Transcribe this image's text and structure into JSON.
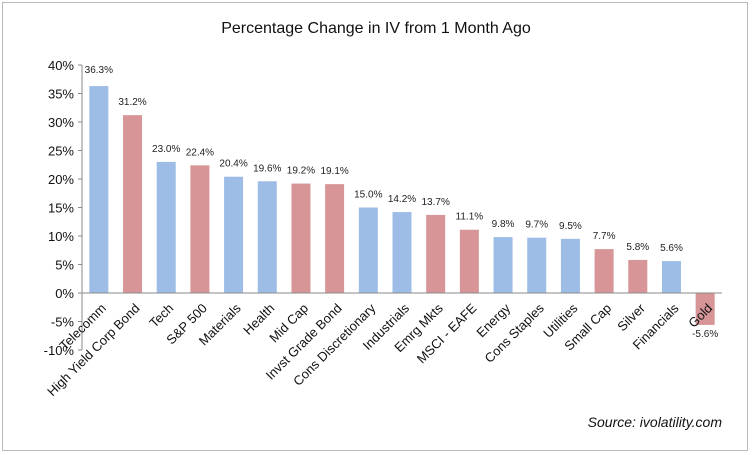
{
  "chart_data": {
    "type": "bar",
    "title": "Percentage Change in IV from 1 Month Ago",
    "source": "Source: ivolatility.com",
    "ylim": [
      -10,
      40
    ],
    "yticks": [
      "40%",
      "35%",
      "30%",
      "25%",
      "20%",
      "15%",
      "10%",
      "5%",
      "0%",
      "-5%",
      "-10%"
    ],
    "grid": false,
    "colors": {
      "blue": "#9dbde6",
      "red": "#d79597"
    },
    "categories": [
      "Telecomm",
      "High Yield Corp Bond",
      "Tech",
      "S&P 500",
      "Materials",
      "Health",
      "Mid Cap",
      "Invst Grade Bond",
      "Cons Discretionary",
      "Industrials",
      "Emrg Mkts",
      "MSCI - EAFE",
      "Energy",
      "Cons Staples",
      "Utilities",
      "Small Cap",
      "Silver",
      "Financials",
      "Gold"
    ],
    "values": [
      36.3,
      31.2,
      23.0,
      22.4,
      20.4,
      19.6,
      19.2,
      19.1,
      15.0,
      14.2,
      13.7,
      11.1,
      9.8,
      9.7,
      9.5,
      7.7,
      5.8,
      5.6,
      -5.6
    ],
    "value_labels": [
      "36.3%",
      "31.2%",
      "23.0%",
      "22.4%",
      "20.4%",
      "19.6%",
      "19.2%",
      "19.1%",
      "15.0%",
      "14.2%",
      "13.7%",
      "11.1%",
      "9.8%",
      "9.7%",
      "9.5%",
      "7.7%",
      "5.8%",
      "5.6%",
      "-5.6%"
    ],
    "bar_colors": [
      "blue",
      "red",
      "blue",
      "red",
      "blue",
      "blue",
      "red",
      "red",
      "blue",
      "blue",
      "red",
      "red",
      "blue",
      "blue",
      "blue",
      "red",
      "red",
      "blue",
      "red"
    ]
  }
}
